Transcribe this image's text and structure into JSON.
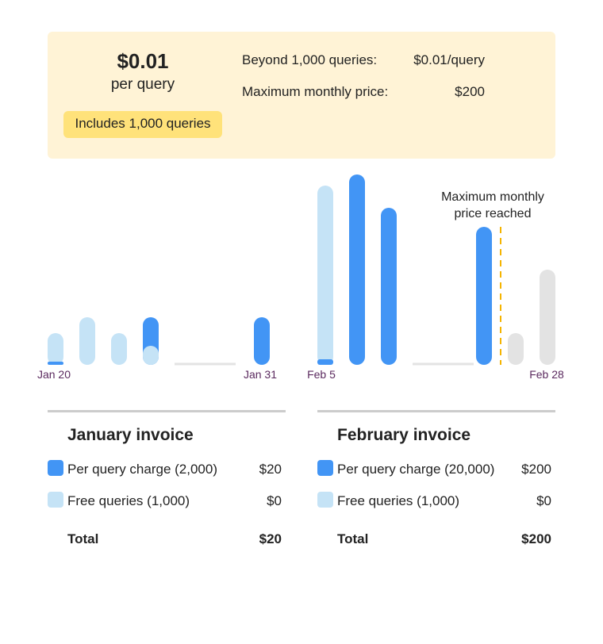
{
  "pricing": {
    "price": "$0.01",
    "unit": "per query",
    "badge": "Includes 1,000 queries",
    "rows": [
      {
        "label": "Beyond 1,000 queries:",
        "value": "$0.01/query"
      },
      {
        "label": "Maximum monthly price:",
        "value": "$200"
      }
    ]
  },
  "chart": {
    "annotation": [
      "Maximum monthly",
      "price reached"
    ],
    "dates": [
      "Jan 20",
      "Jan 31",
      "Feb 5",
      "Feb 28"
    ]
  },
  "invoices": [
    {
      "title": "January invoice",
      "items": [
        {
          "label": "Per query charge (2,000)",
          "amount": "$20"
        },
        {
          "label": "Free queries (1,000)",
          "amount": "$0"
        }
      ],
      "total_label": "Total",
      "total": "$20"
    },
    {
      "title": "February invoice",
      "items": [
        {
          "label": "Per query charge (20,000)",
          "amount": "$200"
        },
        {
          "label": "Free queries (1,000)",
          "amount": "$0"
        }
      ],
      "total_label": "Total",
      "total": "$200"
    }
  ]
}
